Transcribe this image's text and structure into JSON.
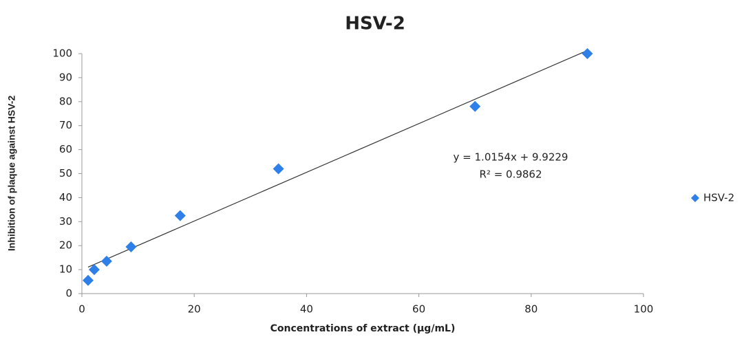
{
  "chart_data": {
    "type": "scatter",
    "title": "HSV-2",
    "x_label": "Concentrations of extract (µg/mL)",
    "y_label": "Inhibition of plaque against HSV-2",
    "series": [
      {
        "name": "HSV-2",
        "color": "#2e7fe8",
        "x": [
          1.1,
          2.2,
          4.4,
          8.75,
          17.5,
          35,
          70,
          90
        ],
        "values": [
          5.5,
          10,
          13.5,
          19.5,
          32.5,
          52,
          78,
          100
        ]
      }
    ],
    "trendline": {
      "slope": 1.0154,
      "intercept": 9.9229,
      "xrange": [
        1.1,
        90
      ],
      "color": "#333333"
    },
    "annotations": [
      "y = 1.0154x + 9.9229",
      "R² = 0.9862"
    ],
    "xlim": [
      0,
      100
    ],
    "xticks": [
      0,
      20,
      40,
      60,
      80,
      100
    ],
    "ylim": [
      0,
      100
    ],
    "yticks": [
      0,
      10,
      20,
      30,
      40,
      50,
      60,
      70,
      80,
      90,
      100
    ],
    "grid": false,
    "legend": "right"
  }
}
